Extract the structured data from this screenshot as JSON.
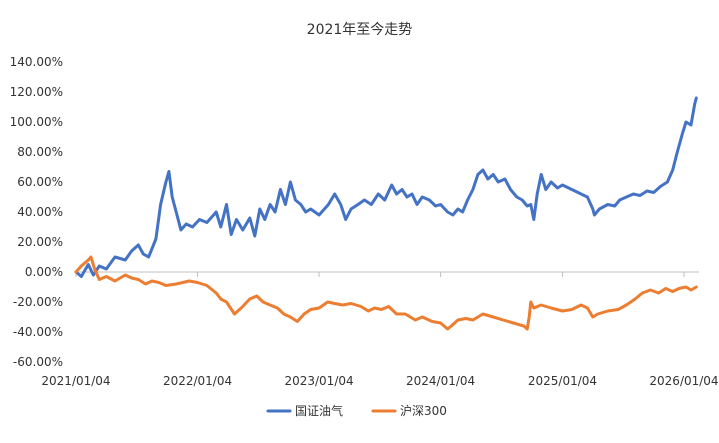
{
  "chart_data": {
    "type": "line",
    "title": "2021年至今走势",
    "xlabel": "",
    "ylabel": "",
    "x_ticks": [
      "2021/01/04",
      "2022/01/04",
      "2023/01/04",
      "2024/01/04",
      "2025/01/04",
      "2026/01/04"
    ],
    "y_ticks": [
      "140.00%",
      "120.00%",
      "100.00%",
      "80.00%",
      "60.00%",
      "40.00%",
      "20.00%",
      "0.00%",
      "-20.00%",
      "-40.00%",
      "-60.00%"
    ],
    "ylim": [
      -60,
      140
    ],
    "y_unit": "%",
    "grid": false,
    "legend_position": "bottom-center",
    "series": [
      {
        "name": "国证油气",
        "color": "#4472C4",
        "points": [
          [
            "2021-01-04",
            0
          ],
          [
            "2021-01-20",
            -3
          ],
          [
            "2021-02-10",
            5
          ],
          [
            "2021-02-25",
            -2
          ],
          [
            "2021-03-15",
            4
          ],
          [
            "2021-04-05",
            2
          ],
          [
            "2021-05-01",
            10
          ],
          [
            "2021-06-01",
            8
          ],
          [
            "2021-06-20",
            14
          ],
          [
            "2021-07-10",
            18
          ],
          [
            "2021-07-25",
            12
          ],
          [
            "2021-08-10",
            10
          ],
          [
            "2021-09-01",
            22
          ],
          [
            "2021-09-15",
            45
          ],
          [
            "2021-10-01",
            60
          ],
          [
            "2021-10-10",
            67
          ],
          [
            "2021-10-20",
            50
          ],
          [
            "2021-11-01",
            40
          ],
          [
            "2021-11-15",
            28
          ],
          [
            "2021-12-01",
            32
          ],
          [
            "2021-12-20",
            30
          ],
          [
            "2022-01-10",
            35
          ],
          [
            "2022-02-01",
            33
          ],
          [
            "2022-03-01",
            40
          ],
          [
            "2022-03-15",
            30
          ],
          [
            "2022-04-01",
            45
          ],
          [
            "2022-04-15",
            25
          ],
          [
            "2022-05-01",
            35
          ],
          [
            "2022-05-20",
            28
          ],
          [
            "2022-06-10",
            36
          ],
          [
            "2022-06-25",
            24
          ],
          [
            "2022-07-10",
            42
          ],
          [
            "2022-07-25",
            35
          ],
          [
            "2022-08-10",
            45
          ],
          [
            "2022-08-25",
            40
          ],
          [
            "2022-09-10",
            55
          ],
          [
            "2022-09-25",
            45
          ],
          [
            "2022-10-10",
            60
          ],
          [
            "2022-10-25",
            48
          ],
          [
            "2022-11-10",
            45
          ],
          [
            "2022-11-25",
            40
          ],
          [
            "2022-12-10",
            42
          ],
          [
            "2023-01-04",
            38
          ],
          [
            "2023-02-01",
            45
          ],
          [
            "2023-02-20",
            52
          ],
          [
            "2023-03-10",
            45
          ],
          [
            "2023-03-25",
            35
          ],
          [
            "2023-04-10",
            42
          ],
          [
            "2023-05-01",
            45
          ],
          [
            "2023-05-20",
            48
          ],
          [
            "2023-06-10",
            45
          ],
          [
            "2023-07-01",
            52
          ],
          [
            "2023-07-20",
            48
          ],
          [
            "2023-08-10",
            58
          ],
          [
            "2023-08-25",
            52
          ],
          [
            "2023-09-10",
            55
          ],
          [
            "2023-09-25",
            50
          ],
          [
            "2023-10-10",
            52
          ],
          [
            "2023-10-25",
            45
          ],
          [
            "2023-11-10",
            50
          ],
          [
            "2023-12-01",
            48
          ],
          [
            "2023-12-20",
            44
          ],
          [
            "2024-01-04",
            45
          ],
          [
            "2024-01-25",
            40
          ],
          [
            "2024-02-10",
            38
          ],
          [
            "2024-02-25",
            42
          ],
          [
            "2024-03-10",
            40
          ],
          [
            "2024-03-25",
            48
          ],
          [
            "2024-04-10",
            55
          ],
          [
            "2024-04-25",
            65
          ],
          [
            "2024-05-10",
            68
          ],
          [
            "2024-05-25",
            62
          ],
          [
            "2024-06-10",
            65
          ],
          [
            "2024-06-25",
            60
          ],
          [
            "2024-07-15",
            62
          ],
          [
            "2024-08-01",
            55
          ],
          [
            "2024-08-20",
            50
          ],
          [
            "2024-09-05",
            48
          ],
          [
            "2024-09-20",
            44
          ],
          [
            "2024-10-01",
            45
          ],
          [
            "2024-10-10",
            35
          ],
          [
            "2024-10-20",
            52
          ],
          [
            "2024-11-01",
            65
          ],
          [
            "2024-11-15",
            55
          ],
          [
            "2024-12-01",
            60
          ],
          [
            "2024-12-20",
            56
          ],
          [
            "2025-01-04",
            58
          ],
          [
            "2025-02-01",
            55
          ],
          [
            "2025-03-01",
            52
          ],
          [
            "2025-03-20",
            50
          ],
          [
            "2025-04-05",
            42
          ],
          [
            "2025-04-10",
            38
          ],
          [
            "2025-04-25",
            42
          ],
          [
            "2025-05-20",
            45
          ],
          [
            "2025-06-10",
            44
          ],
          [
            "2025-06-25",
            48
          ],
          [
            "2025-07-15",
            50
          ],
          [
            "2025-08-05",
            52
          ],
          [
            "2025-08-25",
            51
          ],
          [
            "2025-09-15",
            54
          ],
          [
            "2025-10-05",
            53
          ],
          [
            "2025-10-25",
            57
          ],
          [
            "2025-11-15",
            60
          ],
          [
            "2025-12-01",
            68
          ],
          [
            "2025-12-15",
            80
          ],
          [
            "2025-12-30",
            92
          ],
          [
            "2026-01-10",
            100
          ],
          [
            "2026-01-25",
            98
          ],
          [
            "2026-02-05",
            112
          ],
          [
            "2026-02-10",
            116
          ]
        ]
      },
      {
        "name": "沪深300",
        "color": "#ED7D31",
        "points": [
          [
            "2021-01-04",
            0
          ],
          [
            "2021-01-20",
            4
          ],
          [
            "2021-02-10",
            8
          ],
          [
            "2021-02-18",
            10
          ],
          [
            "2021-03-01",
            2
          ],
          [
            "2021-03-15",
            -5
          ],
          [
            "2021-04-05",
            -3
          ],
          [
            "2021-05-01",
            -6
          ],
          [
            "2021-06-01",
            -2
          ],
          [
            "2021-06-20",
            -4
          ],
          [
            "2021-07-10",
            -5
          ],
          [
            "2021-08-01",
            -8
          ],
          [
            "2021-08-20",
            -6
          ],
          [
            "2021-09-10",
            -7
          ],
          [
            "2021-10-01",
            -9
          ],
          [
            "2021-11-01",
            -8
          ],
          [
            "2021-12-10",
            -6
          ],
          [
            "2022-01-04",
            -7
          ],
          [
            "2022-02-01",
            -9
          ],
          [
            "2022-03-01",
            -14
          ],
          [
            "2022-03-15",
            -18
          ],
          [
            "2022-04-01",
            -20
          ],
          [
            "2022-04-25",
            -28
          ],
          [
            "2022-05-15",
            -24
          ],
          [
            "2022-06-10",
            -18
          ],
          [
            "2022-07-01",
            -16
          ],
          [
            "2022-07-20",
            -20
          ],
          [
            "2022-08-10",
            -22
          ],
          [
            "2022-09-01",
            -24
          ],
          [
            "2022-09-20",
            -28
          ],
          [
            "2022-10-10",
            -30
          ],
          [
            "2022-10-31",
            -33
          ],
          [
            "2022-11-20",
            -28
          ],
          [
            "2022-12-10",
            -25
          ],
          [
            "2023-01-04",
            -24
          ],
          [
            "2023-01-30",
            -20
          ],
          [
            "2023-02-20",
            -21
          ],
          [
            "2023-03-15",
            -22
          ],
          [
            "2023-04-10",
            -21
          ],
          [
            "2023-05-10",
            -23
          ],
          [
            "2023-06-01",
            -26
          ],
          [
            "2023-06-20",
            -24
          ],
          [
            "2023-07-10",
            -25
          ],
          [
            "2023-08-01",
            -23
          ],
          [
            "2023-08-25",
            -28
          ],
          [
            "2023-09-20",
            -28
          ],
          [
            "2023-10-20",
            -32
          ],
          [
            "2023-11-10",
            -30
          ],
          [
            "2023-12-10",
            -33
          ],
          [
            "2024-01-04",
            -34
          ],
          [
            "2024-01-25",
            -38
          ],
          [
            "2024-02-05",
            -36
          ],
          [
            "2024-02-25",
            -32
          ],
          [
            "2024-03-20",
            -31
          ],
          [
            "2024-04-10",
            -32
          ],
          [
            "2024-05-10",
            -28
          ],
          [
            "2024-06-10",
            -30
          ],
          [
            "2024-07-10",
            -32
          ],
          [
            "2024-08-10",
            -34
          ],
          [
            "2024-09-10",
            -36
          ],
          [
            "2024-09-20",
            -38
          ],
          [
            "2024-09-26",
            -30
          ],
          [
            "2024-10-01",
            -20
          ],
          [
            "2024-10-10",
            -24
          ],
          [
            "2024-11-01",
            -22
          ],
          [
            "2024-12-01",
            -24
          ],
          [
            "2025-01-04",
            -26
          ],
          [
            "2025-02-01",
            -25
          ],
          [
            "2025-03-01",
            -22
          ],
          [
            "2025-03-20",
            -24
          ],
          [
            "2025-04-05",
            -30
          ],
          [
            "2025-04-20",
            -28
          ],
          [
            "2025-05-20",
            -26
          ],
          [
            "2025-06-20",
            -25
          ],
          [
            "2025-07-15",
            -22
          ],
          [
            "2025-08-10",
            -18
          ],
          [
            "2025-09-01",
            -14
          ],
          [
            "2025-09-25",
            -12
          ],
          [
            "2025-10-20",
            -14
          ],
          [
            "2025-11-10",
            -11
          ],
          [
            "2025-12-01",
            -13
          ],
          [
            "2025-12-20",
            -11
          ],
          [
            "2026-01-10",
            -10
          ],
          [
            "2026-01-25",
            -12
          ],
          [
            "2026-02-10",
            -10
          ]
        ]
      }
    ]
  }
}
